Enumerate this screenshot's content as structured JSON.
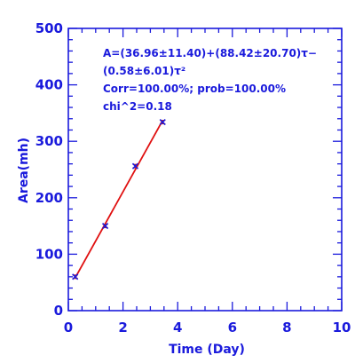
{
  "chart_data": {
    "type": "scatter",
    "title": "",
    "xlabel": "Time (Day)",
    "ylabel": "Area(mh)",
    "xlim": [
      0,
      10
    ],
    "ylim": [
      0,
      500
    ],
    "x_ticks": [
      0,
      2,
      4,
      6,
      8,
      10
    ],
    "y_ticks": [
      0,
      100,
      200,
      300,
      400,
      500
    ],
    "grid": false,
    "legend": "none",
    "series": [
      {
        "x": [
          0.25,
          1.35,
          2.45,
          3.45
        ],
        "y": [
          60,
          150,
          256,
          334
        ],
        "y_err": [
          3,
          3,
          3,
          3
        ],
        "marker_color": "#1a1adc",
        "error_color": "#cc1a1a"
      }
    ],
    "fit_line": {
      "x": [
        0.25,
        3.45
      ],
      "y": [
        58,
        337
      ],
      "color": "#e01010"
    },
    "annotations": [
      "A=(36.96±11.40)+(88.42±20.70)τ−",
      "(0.58±6.01)τ²",
      "Corr=100.00%;   prob=100.00%",
      "chi^2=0.18"
    ],
    "colors": {
      "axis": "#1a1adc",
      "fit": "#e01010",
      "marker": "#1a1adc"
    }
  }
}
